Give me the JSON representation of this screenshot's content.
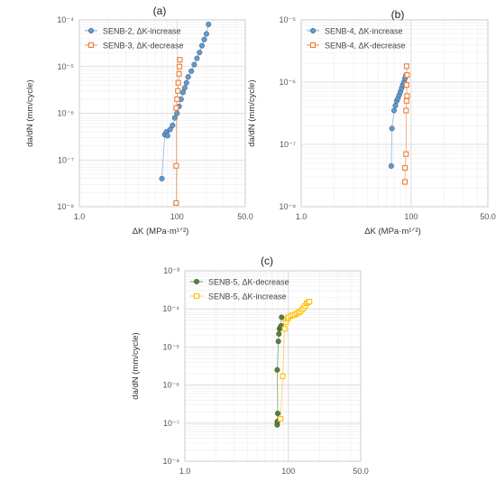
{
  "chart_data": [
    {
      "panel_label": "(a)",
      "type": "scatter",
      "xscale": "log",
      "yscale": "log",
      "xlim": [
        10,
        500
      ],
      "ylim": [
        1e-08,
        0.0001
      ],
      "x_tick_labels": [
        "1.0",
        "100",
        "50.0"
      ],
      "y_tick_labels": [
        "10⁻⁸",
        "10⁻⁷",
        "10⁻⁶",
        "10⁻⁵",
        "10⁻⁴"
      ],
      "xlabel": "ΔK (MPa·m¹ᐟ²)",
      "ylabel": "da/dN (mm/cycle)",
      "grid": true,
      "legend_position": "top-left",
      "series": [
        {
          "name": "SENB-2, ΔK-increase",
          "color": "#5b9bd5",
          "marker": "circle",
          "points": [
            [
              70,
              4e-08
            ],
            [
              75,
              3.5e-07
            ],
            [
              78,
              4e-07
            ],
            [
              80,
              3.3e-07
            ],
            [
              85,
              4.5e-07
            ],
            [
              90,
              5.5e-07
            ],
            [
              95,
              8e-07
            ],
            [
              100,
              1e-06
            ],
            [
              105,
              1.4e-06
            ],
            [
              110,
              2e-06
            ],
            [
              115,
              2.8e-06
            ],
            [
              120,
              3.5e-06
            ],
            [
              125,
              4.5e-06
            ],
            [
              130,
              6e-06
            ],
            [
              140,
              8e-06
            ],
            [
              150,
              1.1e-05
            ],
            [
              160,
              1.5e-05
            ],
            [
              170,
              2e-05
            ],
            [
              180,
              2.8e-05
            ],
            [
              190,
              3.8e-05
            ],
            [
              200,
              5e-05
            ],
            [
              210,
              8e-05
            ]
          ]
        },
        {
          "name": "SENB-3, ΔK-decrease",
          "color": "#ed7d31",
          "marker": "square",
          "points": [
            [
              98,
              1.2e-08
            ],
            [
              98,
              7.5e-08
            ],
            [
              98,
              1.3e-06
            ],
            [
              100,
              2e-06
            ],
            [
              102,
              3e-06
            ],
            [
              103,
              4.5e-06
            ],
            [
              105,
              7e-06
            ],
            [
              106,
              1e-05
            ],
            [
              107,
              1.4e-05
            ]
          ]
        }
      ]
    },
    {
      "panel_label": "(b)",
      "type": "scatter",
      "xscale": "log",
      "yscale": "log",
      "xlim": [
        10,
        500
      ],
      "ylim": [
        1e-08,
        1e-05
      ],
      "x_tick_labels": [
        "1.0",
        "100",
        "50.0"
      ],
      "y_tick_labels": [
        "10⁻⁸",
        "10⁻⁷",
        "10⁻⁶",
        "10⁻⁵"
      ],
      "xlabel": "ΔK (MPa·m¹ᐟ²)",
      "ylabel": "da/dN (mm/cycle)",
      "grid": true,
      "legend_position": "top-left",
      "series": [
        {
          "name": "SENB-4, ΔK-increase",
          "color": "#5b9bd5",
          "marker": "circle",
          "points": [
            [
              66,
              4.5e-08
            ],
            [
              67,
              1.8e-07
            ],
            [
              70,
              3.5e-07
            ],
            [
              72,
              4.2e-07
            ],
            [
              74,
              5e-07
            ],
            [
              76,
              5.5e-07
            ],
            [
              78,
              6.2e-07
            ],
            [
              80,
              7e-07
            ],
            [
              82,
              8e-07
            ],
            [
              84,
              9e-07
            ],
            [
              86,
              1e-06
            ],
            [
              88,
              1.15e-06
            ],
            [
              90,
              1.3e-06
            ]
          ]
        },
        {
          "name": "SENB-4, ΔK-decrease",
          "color": "#ed7d31",
          "marker": "square",
          "points": [
            [
              88,
              2.5e-08
            ],
            [
              88,
              4.2e-08
            ],
            [
              90,
              7e-08
            ],
            [
              90,
              3.5e-07
            ],
            [
              91,
              5e-07
            ],
            [
              92,
              6e-07
            ],
            [
              91,
              9e-07
            ],
            [
              92,
              1.3e-06
            ],
            [
              91,
              1.8e-06
            ]
          ]
        }
      ]
    },
    {
      "panel_label": "(c)",
      "type": "scatter",
      "xscale": "log",
      "yscale": "log",
      "xlim": [
        10,
        500
      ],
      "ylim": [
        1e-08,
        0.001
      ],
      "x_tick_labels": [
        "1.0",
        "100",
        "50.0"
      ],
      "y_tick_labels": [
        "10⁻⁸",
        "10⁻⁷",
        "10⁻⁶",
        "10⁻⁵",
        "10⁻⁴",
        "10⁻³"
      ],
      "xlabel": "ΔK (MPa·m¹ᐟ²)",
      "ylabel": "da/dN (mm/cycle)",
      "grid": true,
      "legend_position": "top-left",
      "series": [
        {
          "name": "SENB-5, ΔK-decrease",
          "color": "#548235",
          "marker": "circle",
          "points": [
            [
              78,
              9e-08
            ],
            [
              78,
              1.1e-07
            ],
            [
              79,
              1.8e-07
            ],
            [
              78,
              2.5e-06
            ],
            [
              80,
              1.4e-05
            ],
            [
              81,
              2.2e-05
            ],
            [
              82,
              3e-05
            ],
            [
              84,
              3.3e-05
            ],
            [
              85,
              3.6e-05
            ],
            [
              86,
              6e-05
            ]
          ]
        },
        {
          "name": "SENB-5, ΔK-increase",
          "color": "#ffc000",
          "marker": "square",
          "points": [
            [
              84,
              1.3e-07
            ],
            [
              88,
              1.7e-06
            ],
            [
              92,
              3e-05
            ],
            [
              95,
              4.5e-05
            ],
            [
              98,
              5.5e-05
            ],
            [
              100,
              6e-05
            ],
            [
              105,
              6.5e-05
            ],
            [
              110,
              6.8e-05
            ],
            [
              115,
              7e-05
            ],
            [
              120,
              7.5e-05
            ],
            [
              125,
              8e-05
            ],
            [
              130,
              8.5e-05
            ],
            [
              135,
              9.5e-05
            ],
            [
              140,
              0.000105
            ],
            [
              145,
              0.00012
            ],
            [
              150,
              0.00014
            ],
            [
              155,
              0.00015
            ],
            [
              160,
              0.000155
            ]
          ]
        }
      ]
    }
  ]
}
